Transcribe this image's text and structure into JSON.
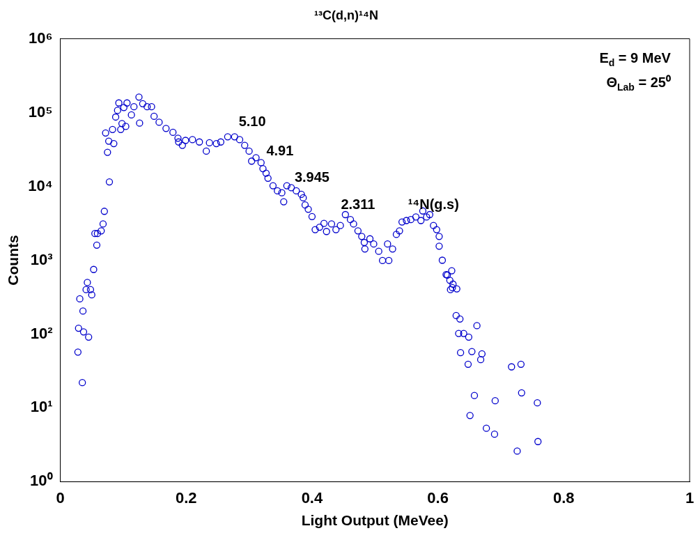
{
  "chart_data": {
    "type": "scatter",
    "title": "¹³C(d,n)¹⁴N",
    "xlabel": "Light Output (MeVee)",
    "ylabel": "Counts",
    "color": "#0000cc",
    "marker": "circle",
    "log": "y",
    "legend": false,
    "xlim": [
      0,
      1
    ],
    "xticks": [
      0,
      0.2,
      0.4,
      0.6,
      0.8,
      1
    ],
    "ylim": [
      1,
      1000000
    ],
    "yticks": [
      {
        "value": 1,
        "label": "10⁰"
      },
      {
        "value": 10,
        "label": "10¹"
      },
      {
        "value": 100,
        "label": "10²"
      },
      {
        "value": 1000,
        "label": "10³"
      },
      {
        "value": 10000,
        "label": "10⁴"
      },
      {
        "value": 100000,
        "label": "10⁵"
      },
      {
        "value": 1000000,
        "label": "10⁶"
      }
    ],
    "x": [
      0.028,
      0.035,
      0.029,
      0.037,
      0.045,
      0.031,
      0.036,
      0.043,
      0.041,
      0.048,
      0.05,
      0.053,
      0.058,
      0.055,
      0.059,
      0.065,
      0.068,
      0.07,
      0.078,
      0.075,
      0.077,
      0.072,
      0.085,
      0.083,
      0.096,
      0.098,
      0.104,
      0.088,
      0.091,
      0.093,
      0.106,
      0.101,
      0.113,
      0.117,
      0.125,
      0.126,
      0.131,
      0.138,
      0.145,
      0.149,
      0.157,
      0.168,
      0.179,
      0.187,
      0.194,
      0.188,
      0.199,
      0.21,
      0.221,
      0.232,
      0.237,
      0.248,
      0.255,
      0.266,
      0.277,
      0.285,
      0.293,
      0.3,
      0.304,
      0.311,
      0.319,
      0.322,
      0.327,
      0.33,
      0.338,
      0.345,
      0.352,
      0.355,
      0.36,
      0.367,
      0.375,
      0.383,
      0.386,
      0.389,
      0.394,
      0.4,
      0.405,
      0.412,
      0.419,
      0.423,
      0.431,
      0.438,
      0.445,
      0.453,
      0.461,
      0.466,
      0.473,
      0.479,
      0.483,
      0.484,
      0.492,
      0.498,
      0.506,
      0.512,
      0.522,
      0.52,
      0.528,
      0.534,
      0.539,
      0.543,
      0.55,
      0.557,
      0.565,
      0.573,
      0.576,
      0.582,
      0.587,
      0.593,
      0.598,
      0.602,
      0.602,
      0.607,
      0.613,
      0.619,
      0.623,
      0.622,
      0.615,
      0.624,
      0.62,
      0.63,
      0.629,
      0.635,
      0.662,
      0.633,
      0.641,
      0.649,
      0.636,
      0.654,
      0.67,
      0.668,
      0.648,
      0.717,
      0.732,
      0.658,
      0.691,
      0.733,
      0.758,
      0.651,
      0.677,
      0.69,
      0.726,
      0.759
    ],
    "values": [
      57,
      22,
      120,
      107,
      91,
      300,
      205,
      500,
      400,
      400,
      340,
      750,
      1600,
      2300,
      2300,
      2500,
      3100,
      4600,
      11500,
      29000,
      41000,
      53000,
      38000,
      59000,
      59000,
      71000,
      65000,
      87000,
      107000,
      135000,
      135000,
      117000,
      93000,
      120000,
      162000,
      72000,
      132000,
      120000,
      120000,
      89000,
      74000,
      61000,
      54000,
      45000,
      36000,
      40000,
      42000,
      43000,
      40000,
      30000,
      39000,
      38000,
      40000,
      47000,
      47000,
      43000,
      36000,
      30000,
      22000,
      24500,
      21000,
      17400,
      15100,
      12900,
      10200,
      8700,
      8200,
      6200,
      10200,
      9600,
      8700,
      7800,
      7000,
      5600,
      4900,
      3900,
      2600,
      2800,
      3150,
      2450,
      3100,
      2600,
      2950,
      4150,
      3550,
      3100,
      2500,
      2100,
      1740,
      1420,
      1950,
      1660,
      1320,
      990,
      990,
      1660,
      1420,
      2240,
      2500,
      3300,
      3450,
      3550,
      3850,
      3450,
      4650,
      3850,
      4150,
      2950,
      2600,
      2100,
      1550,
      1000,
      640,
      535,
      425,
      720,
      630,
      475,
      400,
      410,
      178,
      160,
      130,
      102,
      102,
      91,
      56,
      58,
      54,
      45,
      39,
      36,
      39,
      14.7,
      12.5,
      16,
      11.7,
      7.9,
      5.3,
      4.4,
      2.6,
      3.5
    ],
    "annotations": [
      "E$_{d}$ = 9 MeV",
      "Θ$_{Lab}$ = 25⁰",
      "5.10",
      "4.91",
      "3.945",
      "2.311",
      "¹⁴N(g.s)"
    ]
  }
}
